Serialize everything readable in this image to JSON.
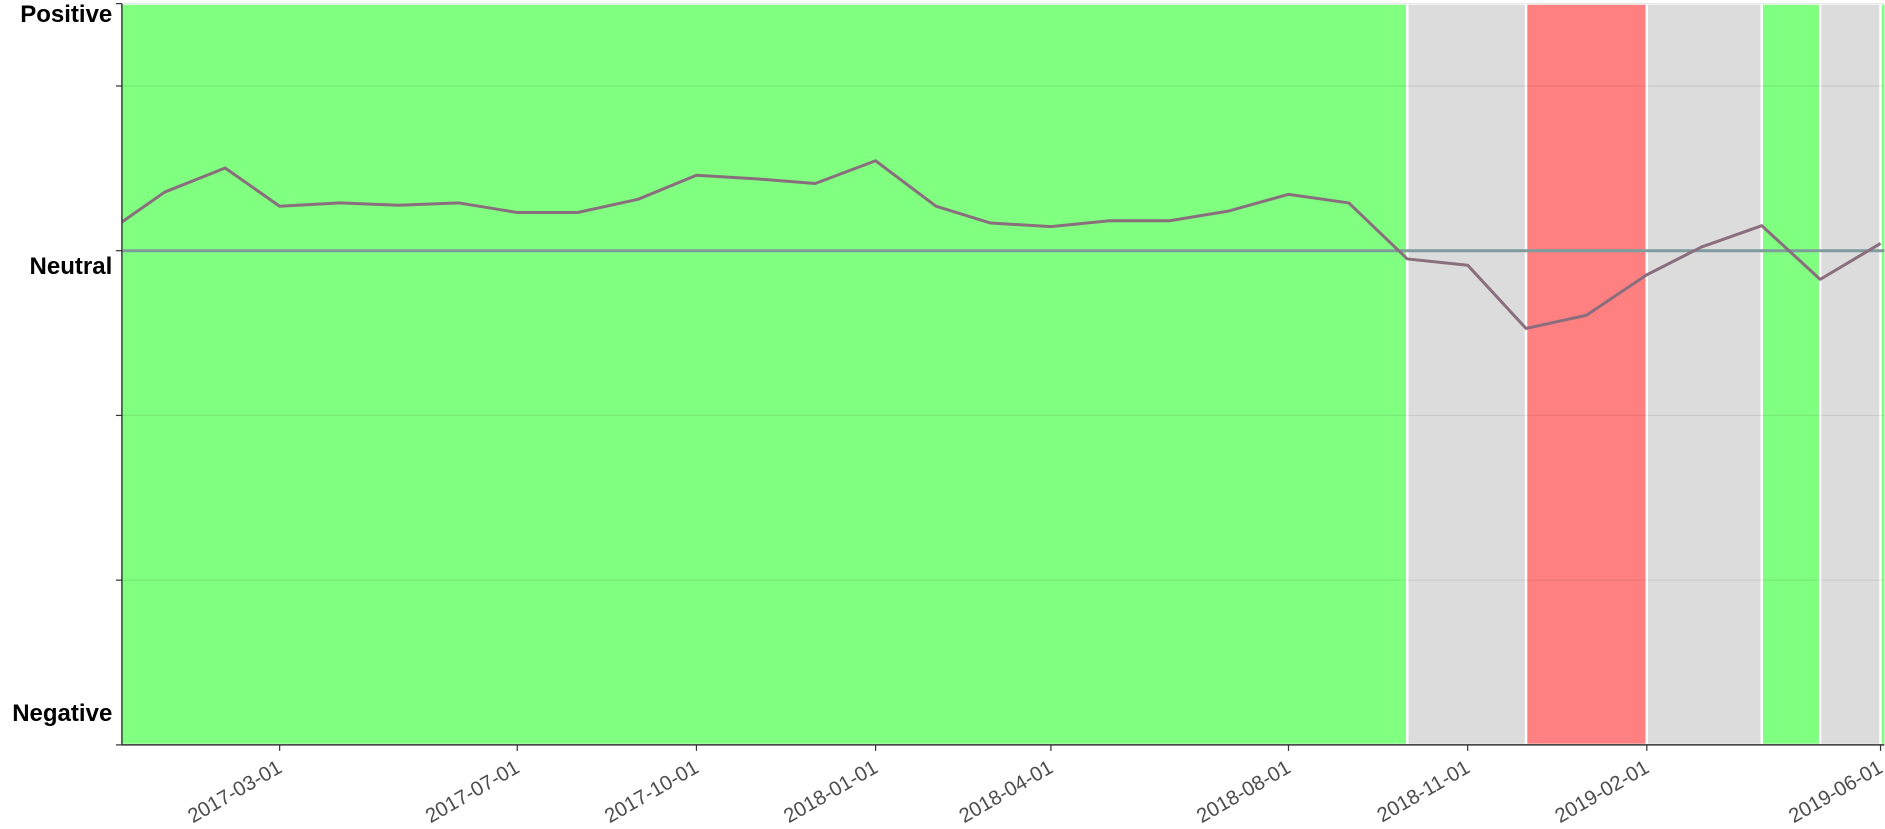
{
  "chart_data": {
    "type": "line",
    "x": [
      "2016-12-01",
      "2017-01-01",
      "2017-02-01",
      "2017-03-01",
      "2017-04-01",
      "2017-05-01",
      "2017-06-01",
      "2017-07-01",
      "2017-08-01",
      "2017-09-01",
      "2017-10-01",
      "2017-11-01",
      "2017-12-01",
      "2018-01-01",
      "2018-02-01",
      "2018-03-01",
      "2018-04-01",
      "2018-05-01",
      "2018-06-01",
      "2018-07-01",
      "2018-08-01",
      "2018-09-01",
      "2018-10-01",
      "2018-11-01",
      "2018-12-01",
      "2019-01-01",
      "2019-02-01",
      "2019-03-01",
      "2019-04-01",
      "2019-05-01",
      "2019-06-01"
    ],
    "series": [
      {
        "color": "#8a6e7e",
        "values": [
          0.05,
          0.178,
          0.251,
          0.135,
          0.145,
          0.138,
          0.145,
          0.116,
          0.116,
          0.156,
          0.229,
          0.218,
          0.204,
          0.273,
          0.135,
          0.084,
          0.073,
          0.091,
          0.091,
          0.12,
          0.171,
          0.145,
          -0.025,
          -0.044,
          -0.236,
          -0.196,
          -0.073,
          0.011,
          0.076,
          -0.087,
          0.022
        ]
      }
    ],
    "bands": [
      {
        "start": "2016-12-01",
        "end": "2018-10-01",
        "color": "#80ff80"
      },
      {
        "start": "2018-10-01",
        "end": "2018-12-01",
        "color": "#dcdcdc"
      },
      {
        "start": "2018-12-01",
        "end": "2019-02-01",
        "color": "#ff8080"
      },
      {
        "start": "2019-02-01",
        "end": "2019-04-01",
        "color": "#dcdcdc"
      },
      {
        "start": "2019-04-01",
        "end": "2019-05-01",
        "color": "#80ff80"
      },
      {
        "start": "2019-05-01",
        "end": "2019-06-01",
        "color": "#dcdcdc"
      },
      {
        "start": "2019-06-01",
        "end": "2019-07-01",
        "color": "#80ff80"
      }
    ],
    "hline": {
      "value": 0,
      "color": "#7f9c9c"
    },
    "xlim": [
      "2016-12-10",
      "2019-06-03"
    ],
    "xticks": [
      "2017-03-01",
      "2017-07-01",
      "2017-10-01",
      "2018-01-01",
      "2018-04-01",
      "2018-08-01",
      "2018-11-01",
      "2019-02-01",
      "2019-06-01"
    ],
    "ylim": [
      -1.5,
      0.75
    ],
    "yticks": [
      {
        "value": 0.75,
        "label": "Positive"
      },
      {
        "value": 0.5,
        "label": null
      },
      {
        "value": 0,
        "label": "Neutral"
      },
      {
        "value": -0.5,
        "label": null
      },
      {
        "value": -1,
        "label": null
      },
      {
        "value": -1.5,
        "label": "Negative"
      }
    ],
    "grid": true
  }
}
